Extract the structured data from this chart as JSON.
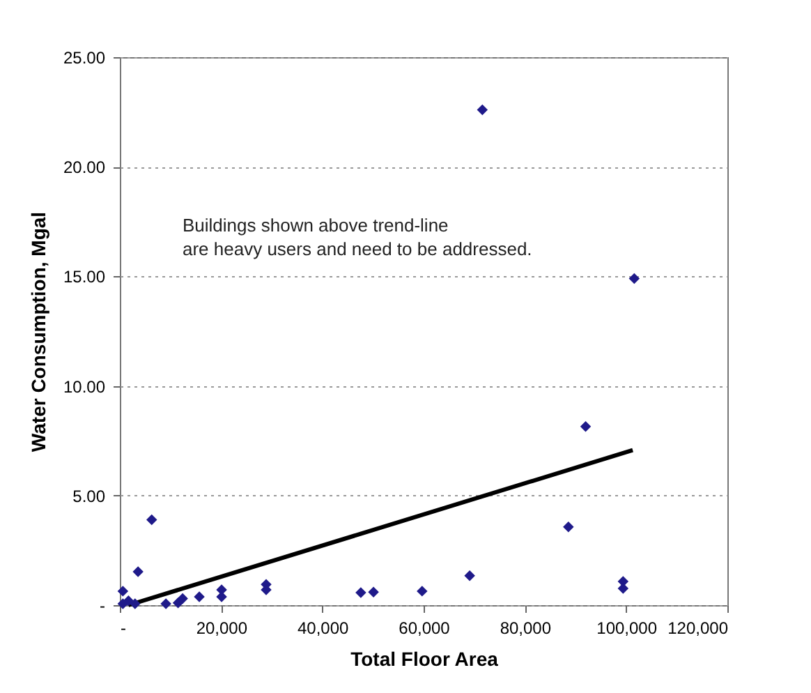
{
  "chart_data": {
    "type": "scatter",
    "xlabel": "Total Floor Area",
    "ylabel": "Water Consumption, Mgal",
    "annotations": [
      "Buildings shown above trend-line\nare heavy users and need to be addressed."
    ],
    "series": [
      {
        "color": "#1f1a8a",
        "marker": "diamond",
        "x": [
          71600,
          101600,
          92000,
          88600,
          99400,
          99400,
          69100,
          59700,
          47600,
          50100,
          6300,
          3600,
          600,
          600,
          1700,
          3000,
          9100,
          11500,
          12400,
          15700,
          20100,
          20100,
          28900,
          28900
        ],
        "values": [
          22.6,
          14.9,
          8.15,
          3.57,
          1.08,
          0.76,
          1.34,
          0.64,
          0.57,
          0.6,
          3.9,
          1.53,
          0.64,
          0.06,
          0.2,
          0.06,
          0.06,
          0.1,
          0.3,
          0.38,
          0.7,
          0.38,
          0.95,
          0.7
        ]
      },
      {
        "type": "line",
        "color": "#000000",
        "x": [
          1700,
          101300
        ],
        "values": [
          0,
          7.07
        ]
      }
    ],
    "xlim": [
      0,
      120000
    ],
    "xticks": [
      {
        "value": 0,
        "label": "-"
      },
      {
        "value": 20000,
        "label": "20,000"
      },
      {
        "value": 40000,
        "label": "40,000"
      },
      {
        "value": 60000,
        "label": "60,000"
      },
      {
        "value": 80000,
        "label": "80,000"
      },
      {
        "value": 100000,
        "label": "100,000"
      },
      {
        "value": 120000,
        "label": "120,000"
      }
    ],
    "ylim": [
      0,
      25
    ],
    "yticks": [
      {
        "value": 0,
        "label": "-"
      },
      {
        "value": 5,
        "label": "5.00"
      },
      {
        "value": 10,
        "label": "10.00"
      },
      {
        "value": 15,
        "label": "15.00"
      },
      {
        "value": 20,
        "label": "20.00"
      },
      {
        "value": 25,
        "label": "25.00"
      }
    ],
    "grid": "y"
  }
}
